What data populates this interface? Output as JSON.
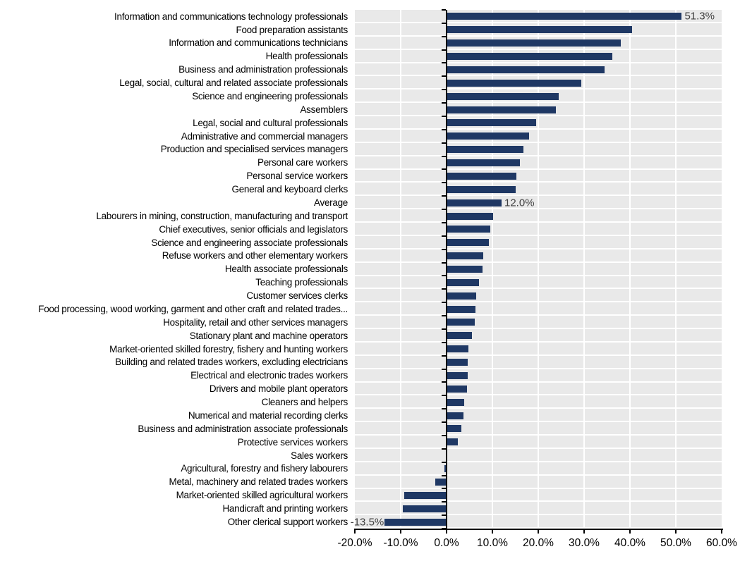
{
  "chart_data": {
    "type": "bar",
    "orientation": "horizontal",
    "title": "",
    "xlabel": "",
    "ylabel": "",
    "unit": "%",
    "x_range": [
      -20,
      60
    ],
    "x_tick_step": 10,
    "x_tick_labels": [
      "-20.0%",
      "-10.0%",
      "0.0%",
      "10.0%",
      "20.0%",
      "30.0%",
      "40.0%",
      "50.0%",
      "60.0%"
    ],
    "grid": "white vertical gridlines every 10% on gray banded plot background",
    "legend": "none",
    "colors": {
      "bar": "#1f3864",
      "plot_background_band": "#e9e9e9",
      "gridline": "#ffffff",
      "axis": "#000000",
      "data_label": "#404040",
      "category_label": "#000000"
    },
    "rows": [
      {
        "category": "Information and communications technology professionals",
        "value": 51.3,
        "data_label": "51.3%"
      },
      {
        "category": "Food preparation assistants",
        "value": 40.5
      },
      {
        "category": "Information and communications technicians",
        "value": 38.0
      },
      {
        "category": "Health professionals",
        "value": 36.2
      },
      {
        "category": "Business and administration professionals",
        "value": 34.4
      },
      {
        "category": "Legal, social, cultural and related associate professionals",
        "value": 29.4
      },
      {
        "category": "Science and engineering professionals",
        "value": 24.4
      },
      {
        "category": "Assemblers",
        "value": 23.8
      },
      {
        "category": "Legal, social and cultural professionals",
        "value": 19.5
      },
      {
        "category": "Administrative and commercial managers",
        "value": 18.0
      },
      {
        "category": "Production and specialised services managers",
        "value": 16.7
      },
      {
        "category": "Personal care workers",
        "value": 16.0
      },
      {
        "category": "Personal service workers",
        "value": 15.3
      },
      {
        "category": "General and keyboard clerks",
        "value": 15.1
      },
      {
        "category": "Average",
        "value": 12.0,
        "data_label": "12.0%"
      },
      {
        "category": "Labourers in mining, construction, manufacturing and transport",
        "value": 10.2
      },
      {
        "category": "Chief executives, senior officials and legislators",
        "value": 9.6
      },
      {
        "category": "Science and engineering associate professionals",
        "value": 9.3
      },
      {
        "category": "Refuse workers and other elementary workers",
        "value": 8.0
      },
      {
        "category": "Health associate professionals",
        "value": 7.8
      },
      {
        "category": "Teaching professionals",
        "value": 7.0
      },
      {
        "category": "Customer services clerks",
        "value": 6.4
      },
      {
        "category": "Food processing, wood working, garment and other craft and related trades...",
        "value": 6.3
      },
      {
        "category": "Hospitality, retail and other services managers",
        "value": 6.2
      },
      {
        "category": "Stationary plant and machine operators",
        "value": 5.5
      },
      {
        "category": "Market-oriented skilled forestry, fishery and hunting workers",
        "value": 4.7
      },
      {
        "category": "Building and related trades workers, excluding electricians",
        "value": 4.6
      },
      {
        "category": "Electrical and electronic trades workers",
        "value": 4.6
      },
      {
        "category": "Drivers and mobile plant operators",
        "value": 4.4
      },
      {
        "category": "Cleaners and helpers",
        "value": 3.8
      },
      {
        "category": "Numerical and material recording clerks",
        "value": 3.7
      },
      {
        "category": "Business and administration associate professionals",
        "value": 3.2
      },
      {
        "category": "Protective services workers",
        "value": 2.5
      },
      {
        "category": "Sales workers",
        "value": -0.2
      },
      {
        "category": "Agricultural, forestry and fishery labourers",
        "value": -0.5
      },
      {
        "category": "Metal, machinery and related trades workers",
        "value": -2.4
      },
      {
        "category": "Market-oriented skilled agricultural workers",
        "value": -9.2
      },
      {
        "category": "Handicraft and printing workers",
        "value": -9.6
      },
      {
        "category": "Other clerical support workers",
        "value": -13.5,
        "data_label": "-13.5%"
      }
    ]
  }
}
